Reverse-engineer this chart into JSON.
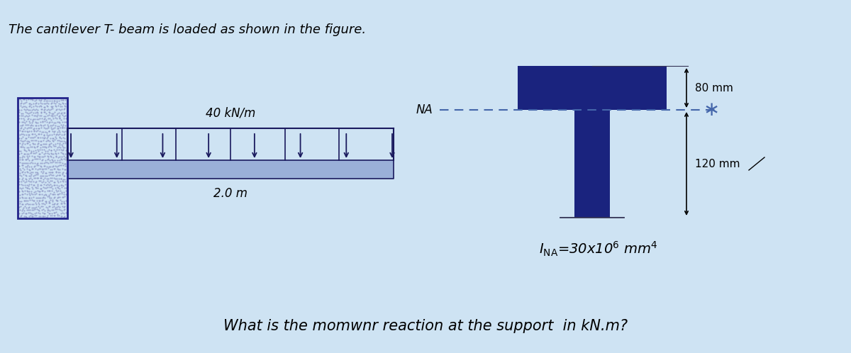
{
  "bg_color": "#cee3f3",
  "title_text": "The cantilever T- beam is loaded as shown in the figure.",
  "title_fontsize": 13,
  "load_label": "40 kN/m",
  "length_label": "2.0 m",
  "NA_label": "NA",
  "dim_top": "80 mm",
  "dim_bottom": "120 mm",
  "question": "What is the momwnr reaction at the support  in kN.m?",
  "beam_color": "#9ab0d8",
  "wall_fill": "#b0b8e0",
  "wall_border": "#22228a",
  "T_color": "#1a237e",
  "arrow_color": "#1a1a5e",
  "dashed_color": "#4466aa",
  "fig_width": 12.0,
  "fig_height": 4.98,
  "dpi": 100,
  "xlim": [
    0,
    12
  ],
  "ylim": [
    0,
    4.98
  ]
}
